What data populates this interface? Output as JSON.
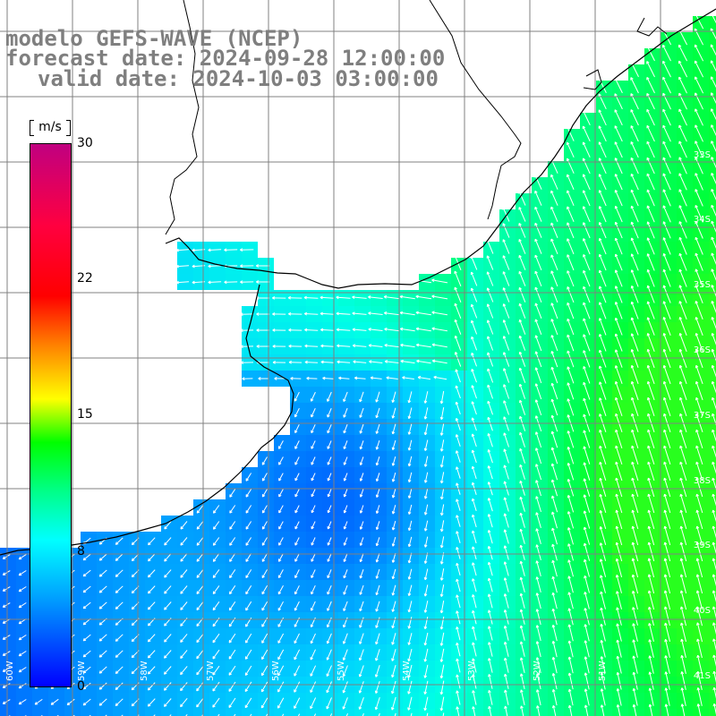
{
  "header": {
    "line1": "modelo GEFS-WAVE (NCEP)",
    "line2": "forecast date: 2024-09-28 12:00:00",
    "line3": "valid date: 2024-10-03 03:00:00"
  },
  "colorbar": {
    "unit": "m/s",
    "ticks": [
      "30",
      "22",
      "15",
      "8",
      "0"
    ],
    "colors": [
      "#0000ff",
      "#00a6ff",
      "#00ffff",
      "#00ff88",
      "#00ff00",
      "#ffff00",
      "#ff8000",
      "#ff0000",
      "#c00080"
    ]
  },
  "lat_labels": [
    "33S",
    "34S",
    "35S",
    "36S",
    "37S",
    "38S",
    "39S",
    "40S",
    "41S"
  ],
  "lon_labels": [
    "60W",
    "59W",
    "58W",
    "57W",
    "56W",
    "55W",
    "54W",
    "53W",
    "52W",
    "51W"
  ],
  "colors": {
    "land": "#ffffff",
    "coastline": "#000000",
    "grid": "#808080",
    "arrows": "#ffffff",
    "title_text": "#7f7f7f"
  }
}
